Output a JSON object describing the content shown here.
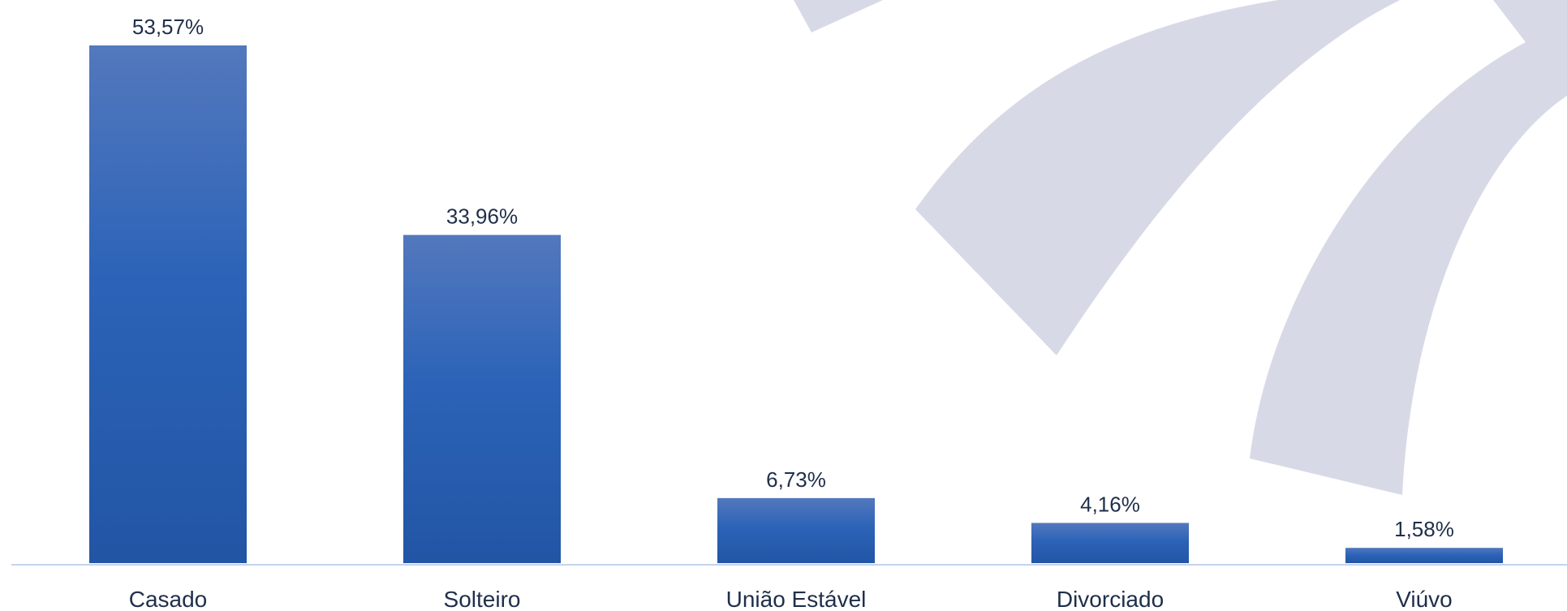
{
  "chart_data": {
    "type": "bar",
    "categories": [
      "Casado",
      "Solteiro",
      "União Estável",
      "Divorciado",
      "Viúvo"
    ],
    "values": [
      53.57,
      33.96,
      6.73,
      4.16,
      1.58
    ],
    "data_labels": [
      "53,57%",
      "33,96%",
      "6,73%",
      "4,16%",
      "1,58%"
    ],
    "title": "",
    "xlabel": "",
    "ylabel": "",
    "ylim": [
      0,
      53.57
    ],
    "grid": false,
    "legend": "none"
  },
  "colors": {
    "bar_top": "#5378bd",
    "bar_mid": "#2c63b8",
    "bar_bottom": "#2255a4",
    "axis": "#c5d3ea",
    "text": "#1f2f4a",
    "watermark": "#d7dae6"
  },
  "watermark_icon": "swoosh-logo-watermark"
}
